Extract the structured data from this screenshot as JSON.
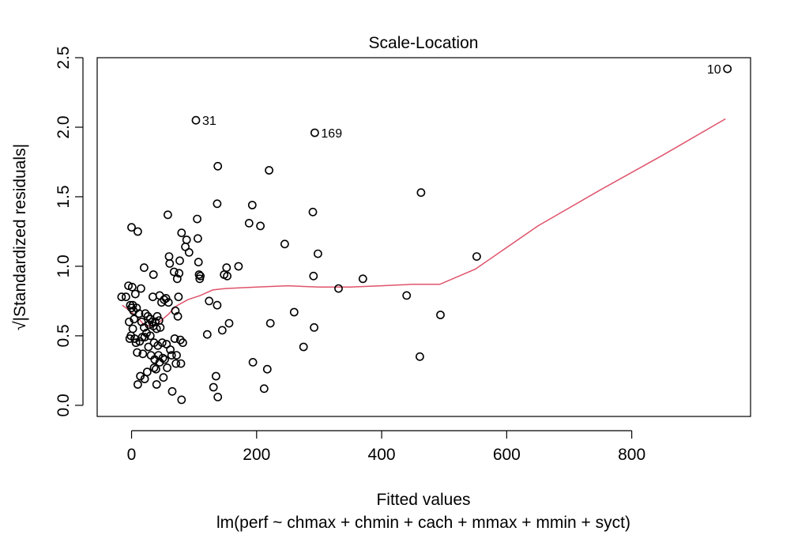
{
  "chart_data": {
    "type": "scatter",
    "title": "Scale-Location",
    "xlabel": "Fitted values",
    "ylabel": "√|Standardized residuals|",
    "subtitle": "lm(perf ~ chmax + chmin + cach + mmax + mmin + syct)",
    "xlim": [
      -55,
      990
    ],
    "ylim": [
      -0.08,
      2.5
    ],
    "xticks": [
      0,
      200,
      400,
      600,
      800
    ],
    "yticks": [
      0.0,
      0.5,
      1.0,
      1.5,
      2.0,
      2.5
    ],
    "xtick_labels": [
      "0",
      "200",
      "400",
      "600",
      "800"
    ],
    "ytick_labels": [
      "0.0",
      "0.5",
      "1.0",
      "1.5",
      "2.0",
      "2.5"
    ],
    "grid": false,
    "legend": "none",
    "colors": {
      "points": "#000000",
      "smooth": "#DF536B"
    },
    "labeled_points": [
      {
        "label": "10",
        "x": 953,
        "y": 2.42
      },
      {
        "label": "31",
        "x": 103,
        "y": 2.05
      },
      {
        "label": "169",
        "x": 293,
        "y": 1.96
      }
    ],
    "points": [
      {
        "x": -16,
        "y": 0.78
      },
      {
        "x": -9,
        "y": 0.78
      },
      {
        "x": -5,
        "y": 0.86
      },
      {
        "x": -4,
        "y": 0.6
      },
      {
        "x": -3,
        "y": 0.48
      },
      {
        "x": -2,
        "y": 0.72
      },
      {
        "x": -1,
        "y": 0.5
      },
      {
        "x": 0,
        "y": 1.28
      },
      {
        "x": 0,
        "y": 0.7
      },
      {
        "x": 1,
        "y": 0.85
      },
      {
        "x": 2,
        "y": 0.72
      },
      {
        "x": 2,
        "y": 0.55
      },
      {
        "x": 3,
        "y": 0.68
      },
      {
        "x": 4,
        "y": 0.62
      },
      {
        "x": 5,
        "y": 0.48
      },
      {
        "x": 6,
        "y": 0.8
      },
      {
        "x": 7,
        "y": 0.45
      },
      {
        "x": 8,
        "y": 0.7
      },
      {
        "x": 9,
        "y": 0.38
      },
      {
        "x": 10,
        "y": 1.25
      },
      {
        "x": 10,
        "y": 0.15
      },
      {
        "x": 12,
        "y": 0.66
      },
      {
        "x": 13,
        "y": 0.46
      },
      {
        "x": 14,
        "y": 0.21
      },
      {
        "x": 15,
        "y": 0.84
      },
      {
        "x": 16,
        "y": 0.6
      },
      {
        "x": 17,
        "y": 0.49
      },
      {
        "x": 18,
        "y": 0.37
      },
      {
        "x": 20,
        "y": 0.99
      },
      {
        "x": 20,
        "y": 0.56
      },
      {
        "x": 21,
        "y": 0.49
      },
      {
        "x": 21,
        "y": 0.19
      },
      {
        "x": 22,
        "y": 0.66
      },
      {
        "x": 24,
        "y": 0.52
      },
      {
        "x": 25,
        "y": 0.24
      },
      {
        "x": 26,
        "y": 0.64
      },
      {
        "x": 27,
        "y": 0.42
      },
      {
        "x": 28,
        "y": 0.58
      },
      {
        "x": 30,
        "y": 0.62
      },
      {
        "x": 30,
        "y": 0.5
      },
      {
        "x": 31,
        "y": 0.36
      },
      {
        "x": 33,
        "y": 0.6
      },
      {
        "x": 34,
        "y": 0.78
      },
      {
        "x": 35,
        "y": 0.94
      },
      {
        "x": 35,
        "y": 0.57
      },
      {
        "x": 36,
        "y": 0.45
      },
      {
        "x": 36,
        "y": 0.27
      },
      {
        "x": 37,
        "y": 0.33
      },
      {
        "x": 38,
        "y": 0.6
      },
      {
        "x": 39,
        "y": 0.26
      },
      {
        "x": 40,
        "y": 0.55
      },
      {
        "x": 40,
        "y": 0.15
      },
      {
        "x": 41,
        "y": 0.64
      },
      {
        "x": 42,
        "y": 0.43
      },
      {
        "x": 43,
        "y": 0.36
      },
      {
        "x": 44,
        "y": 0.61
      },
      {
        "x": 45,
        "y": 0.79
      },
      {
        "x": 45,
        "y": 0.31
      },
      {
        "x": 46,
        "y": 0.56
      },
      {
        "x": 48,
        "y": 0.74
      },
      {
        "x": 49,
        "y": 0.45
      },
      {
        "x": 50,
        "y": 0.34
      },
      {
        "x": 51,
        "y": 0.2
      },
      {
        "x": 52,
        "y": 0.76
      },
      {
        "x": 53,
        "y": 0.33
      },
      {
        "x": 55,
        "y": 0.77
      },
      {
        "x": 56,
        "y": 0.44
      },
      {
        "x": 57,
        "y": 0.27
      },
      {
        "x": 58,
        "y": 1.37
      },
      {
        "x": 59,
        "y": 0.74
      },
      {
        "x": 60,
        "y": 1.07
      },
      {
        "x": 61,
        "y": 1.02
      },
      {
        "x": 62,
        "y": 0.4
      },
      {
        "x": 64,
        "y": 0.36
      },
      {
        "x": 65,
        "y": 0.1
      },
      {
        "x": 68,
        "y": 0.96
      },
      {
        "x": 69,
        "y": 0.48
      },
      {
        "x": 70,
        "y": 0.68
      },
      {
        "x": 71,
        "y": 0.3
      },
      {
        "x": 72,
        "y": 0.36
      },
      {
        "x": 73,
        "y": 0.91
      },
      {
        "x": 74,
        "y": 0.64
      },
      {
        "x": 75,
        "y": 0.78
      },
      {
        "x": 76,
        "y": 0.95
      },
      {
        "x": 77,
        "y": 1.04
      },
      {
        "x": 78,
        "y": 0.47
      },
      {
        "x": 79,
        "y": 0.3
      },
      {
        "x": 80,
        "y": 0.04
      },
      {
        "x": 80,
        "y": 1.24
      },
      {
        "x": 82,
        "y": 0.45
      },
      {
        "x": 86,
        "y": 1.14
      },
      {
        "x": 88,
        "y": 1.19
      },
      {
        "x": 92,
        "y": 1.1
      },
      {
        "x": 105,
        "y": 1.34
      },
      {
        "x": 106,
        "y": 1.2
      },
      {
        "x": 107,
        "y": 1.03
      },
      {
        "x": 108,
        "y": 0.94
      },
      {
        "x": 109,
        "y": 0.91
      },
      {
        "x": 110,
        "y": 0.93
      },
      {
        "x": 121,
        "y": 0.51
      },
      {
        "x": 124,
        "y": 0.75
      },
      {
        "x": 131,
        "y": 0.13
      },
      {
        "x": 135,
        "y": 0.21
      },
      {
        "x": 137,
        "y": 0.72
      },
      {
        "x": 137,
        "y": 1.45
      },
      {
        "x": 138,
        "y": 1.72
      },
      {
        "x": 138,
        "y": 0.06
      },
      {
        "x": 145,
        "y": 0.54
      },
      {
        "x": 148,
        "y": 0.94
      },
      {
        "x": 152,
        "y": 0.99
      },
      {
        "x": 153,
        "y": 0.93
      },
      {
        "x": 156,
        "y": 0.59
      },
      {
        "x": 171,
        "y": 1.0
      },
      {
        "x": 188,
        "y": 1.31
      },
      {
        "x": 193,
        "y": 1.44
      },
      {
        "x": 194,
        "y": 0.31
      },
      {
        "x": 206,
        "y": 1.29
      },
      {
        "x": 212,
        "y": 0.12
      },
      {
        "x": 217,
        "y": 0.26
      },
      {
        "x": 220,
        "y": 1.69
      },
      {
        "x": 222,
        "y": 0.59
      },
      {
        "x": 245,
        "y": 1.16
      },
      {
        "x": 260,
        "y": 0.67
      },
      {
        "x": 275,
        "y": 0.42
      },
      {
        "x": 290,
        "y": 1.39
      },
      {
        "x": 291,
        "y": 0.93
      },
      {
        "x": 292,
        "y": 0.56
      },
      {
        "x": 298,
        "y": 1.09
      },
      {
        "x": 331,
        "y": 0.84
      },
      {
        "x": 370,
        "y": 0.91
      },
      {
        "x": 440,
        "y": 0.79
      },
      {
        "x": 461,
        "y": 0.35
      },
      {
        "x": 463,
        "y": 1.53
      },
      {
        "x": 494,
        "y": 0.65
      },
      {
        "x": 552,
        "y": 1.07
      }
    ],
    "smooth_line": [
      {
        "x": -15,
        "y": 0.72
      },
      {
        "x": 0,
        "y": 0.67
      },
      {
        "x": 10,
        "y": 0.63
      },
      {
        "x": 20,
        "y": 0.58
      },
      {
        "x": 30,
        "y": 0.57
      },
      {
        "x": 40,
        "y": 0.58
      },
      {
        "x": 50,
        "y": 0.62
      },
      {
        "x": 60,
        "y": 0.66
      },
      {
        "x": 70,
        "y": 0.71
      },
      {
        "x": 90,
        "y": 0.76
      },
      {
        "x": 110,
        "y": 0.79
      },
      {
        "x": 130,
        "y": 0.83
      },
      {
        "x": 150,
        "y": 0.84
      },
      {
        "x": 200,
        "y": 0.85
      },
      {
        "x": 250,
        "y": 0.86
      },
      {
        "x": 300,
        "y": 0.85
      },
      {
        "x": 350,
        "y": 0.85
      },
      {
        "x": 400,
        "y": 0.86
      },
      {
        "x": 450,
        "y": 0.87
      },
      {
        "x": 493,
        "y": 0.87
      },
      {
        "x": 550,
        "y": 0.98
      },
      {
        "x": 650,
        "y": 1.29
      },
      {
        "x": 750,
        "y": 1.55
      },
      {
        "x": 850,
        "y": 1.8
      },
      {
        "x": 950,
        "y": 2.06
      }
    ]
  }
}
